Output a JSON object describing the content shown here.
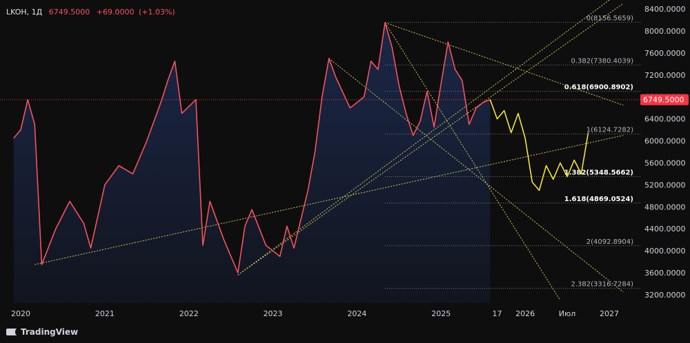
{
  "header": {
    "symbol": "LKOH",
    "interval": "1Д",
    "price": "6749.5000",
    "change": "+69.0000",
    "change_pct": "(+1.03%)"
  },
  "branding": {
    "logo_text": "TradingView"
  },
  "colors": {
    "price_line": "#f7525f",
    "area_fill": "#1c2a4f",
    "forecast": "#f5e53a",
    "fib_lines": "#d6d062",
    "price_label_bg": "#f23645",
    "axis_text": "#d1d4dc"
  },
  "chart_data": {
    "type": "line",
    "y_axis_ticks": [
      "8400.0000",
      "8000.0000",
      "7600.0000",
      "7200.0000",
      "6800.0000",
      "6400.0000",
      "6000.0000",
      "5600.0000",
      "5200.0000",
      "4800.0000",
      "4400.0000",
      "4000.0000",
      "3600.0000",
      "3200.0000"
    ],
    "ylim": [
      3050,
      8500
    ],
    "x_axis_ticks": [
      "2020",
      "2021",
      "2022",
      "2023",
      "2024",
      "2025",
      "17",
      "2026",
      "Июл",
      "2027"
    ],
    "current_price_label": "6749.5000",
    "price_series": {
      "x": [
        "2019-12",
        "2020-01",
        "2020-02",
        "2020-03",
        "2020-04",
        "2020-06",
        "2020-08",
        "2020-10",
        "2020-11",
        "2021-01",
        "2021-03",
        "2021-05",
        "2021-07",
        "2021-09",
        "2021-10",
        "2021-11",
        "2021-12",
        "2022-02",
        "2022-03",
        "2022-04",
        "2022-06",
        "2022-08",
        "2022-09",
        "2022-10",
        "2022-12",
        "2023-02",
        "2023-03",
        "2023-04",
        "2023-06",
        "2023-07",
        "2023-08",
        "2023-09",
        "2023-10",
        "2023-12",
        "2024-02",
        "2024-03",
        "2024-04",
        "2024-05",
        "2024-06",
        "2024-07",
        "2024-08",
        "2024-09",
        "2024-10",
        "2024-11",
        "2024-12",
        "2025-01",
        "2025-02",
        "2025-03",
        "2025-04",
        "2025-05",
        "2025-06",
        "2025-07",
        "2025-08"
      ],
      "y": [
        6050,
        6200,
        6750,
        6300,
        3750,
        4400,
        4900,
        4500,
        4050,
        5200,
        5550,
        5400,
        6000,
        6700,
        7100,
        7450,
        6500,
        6750,
        4100,
        4900,
        4200,
        3600,
        4450,
        4750,
        4100,
        3900,
        4450,
        4050,
        5100,
        5800,
        6800,
        7500,
        7150,
        6600,
        6800,
        7450,
        7300,
        8150,
        7700,
        7000,
        6500,
        6100,
        6350,
        6900,
        6250,
        7050,
        7800,
        7300,
        7100,
        6300,
        6600,
        6700,
        6749.5
      ]
    },
    "forecast_series": {
      "x": [
        "2025-08",
        "2025-09",
        "2025-10",
        "2025-11",
        "2025-12",
        "2026-01",
        "2026-02",
        "2026-03",
        "2026-04",
        "2026-05",
        "2026-06",
        "2026-07",
        "2026-08",
        "2026-09",
        "2026-10"
      ],
      "y": [
        6749.5,
        6400,
        6550,
        6150,
        6500,
        6050,
        5250,
        5100,
        5550,
        5300,
        5600,
        5350,
        5650,
        5400,
        6150
      ]
    },
    "fib_levels": [
      {
        "label": "0(8156.5659)",
        "value": 8156.5659
      },
      {
        "label": "0.382(7380.4039)",
        "value": 7380.4039
      },
      {
        "label": "0.618(6900.8902)",
        "value": 6900.8902
      },
      {
        "label": "1(6124.7282)",
        "value": 6124.7282
      },
      {
        "label": "1.382(5348.5662)",
        "value": 5348.5662
      },
      {
        "label": "1.618(4869.0524)",
        "value": 4869.0524
      },
      {
        "label": "2(4092.8904)",
        "value": 4092.8904
      },
      {
        "label": "2.382(3316.7284)",
        "value": 3316.7284
      }
    ],
    "trend_lines": [
      {
        "from": [
          "2020-03",
          3750
        ],
        "to": [
          "2027-03",
          6100
        ]
      },
      {
        "from": [
          "2022-08",
          3560
        ],
        "to": [
          "2027-03",
          8500
        ]
      },
      {
        "from": [
          "2022-08",
          3560
        ],
        "to": [
          "2027-03",
          8750
        ]
      },
      {
        "from": [
          "2024-05",
          8150
        ],
        "to": [
          "2026-06",
          3100
        ]
      },
      {
        "from": [
          "2024-05",
          8150
        ],
        "to": [
          "2027-03",
          6650
        ]
      },
      {
        "from": [
          "2023-09",
          7500
        ],
        "to": [
          "2027-03",
          3250
        ]
      }
    ]
  }
}
